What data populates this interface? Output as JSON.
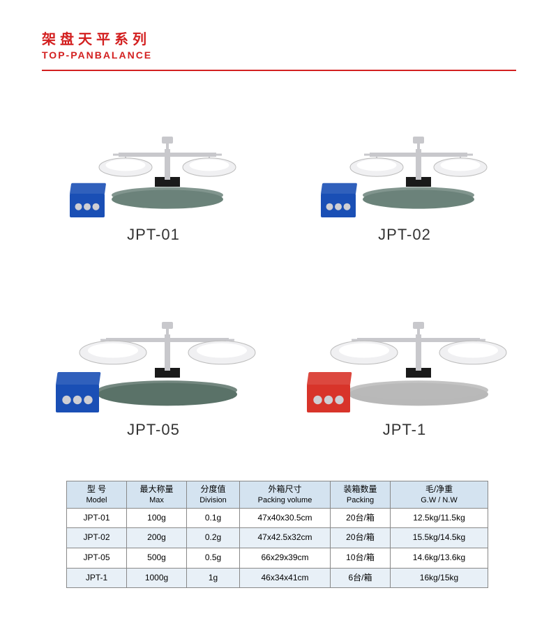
{
  "header": {
    "title_cn": "架盘天平系列",
    "title_en": "TOP-PANBALANCE"
  },
  "products": [
    {
      "label": "JPT-01",
      "base_color": "#6b837a",
      "box_color": "#1a4fb5",
      "size": "small"
    },
    {
      "label": "JPT-02",
      "base_color": "#6b837a",
      "box_color": "#1a4fb5",
      "size": "small"
    },
    {
      "label": "JPT-05",
      "base_color": "#5a7268",
      "box_color": "#1a4fb5",
      "size": "large"
    },
    {
      "label": "JPT-1",
      "base_color": "#b8b8b8",
      "box_color": "#d8342a",
      "size": "large"
    }
  ],
  "table": {
    "headers": [
      {
        "cn": "型 号",
        "en": "Model"
      },
      {
        "cn": "最大称量",
        "en": "Max"
      },
      {
        "cn": "分度值",
        "en": "Division"
      },
      {
        "cn": "外箱尺寸",
        "en": "Packing volume"
      },
      {
        "cn": "装箱数量",
        "en": "Packing"
      },
      {
        "cn": "毛/净重",
        "en": "G.W / N.W"
      }
    ],
    "col_classes": [
      "col-model",
      "col-max",
      "col-div",
      "col-pack",
      "col-qty",
      "col-weight"
    ],
    "rows": [
      [
        "JPT-01",
        "100g",
        "0.1g",
        "47x40x30.5cm",
        "20台/箱",
        "12.5kg/11.5kg"
      ],
      [
        "JPT-02",
        "200g",
        "0.2g",
        "47x42.5x32cm",
        "20台/箱",
        "15.5kg/14.5kg"
      ],
      [
        "JPT-05",
        "500g",
        "0.5g",
        "66x29x39cm",
        "10台/箱",
        "14.6kg/13.6kg"
      ],
      [
        "JPT-1",
        "1000g",
        "1g",
        "46x34x41cm",
        "6台/箱",
        "16kg/15kg"
      ]
    ]
  },
  "colors": {
    "accent": "#d32020",
    "header_bg": "#d4e3f0",
    "alt_row_bg": "#e8f0f7",
    "pan_color": "#f0f0f2",
    "metal_color": "#c8c8cc"
  }
}
